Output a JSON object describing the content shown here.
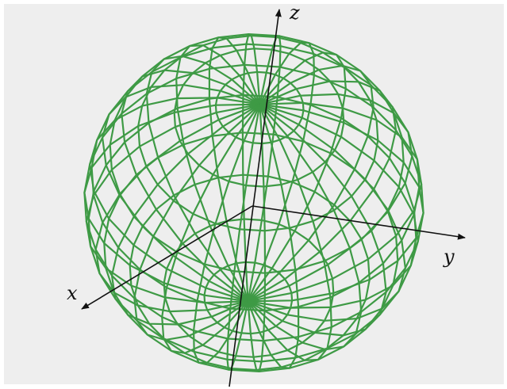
{
  "diagram": {
    "type": "wireframe-sphere",
    "latitude_bands": 12,
    "longitude_segments": 30,
    "colors": {
      "panel_background": "#eeeeee",
      "wireframe": "#3e9a45",
      "axes": "#111111"
    },
    "axes": {
      "x_label": "x",
      "y_label": "y",
      "z_label": "z"
    }
  }
}
